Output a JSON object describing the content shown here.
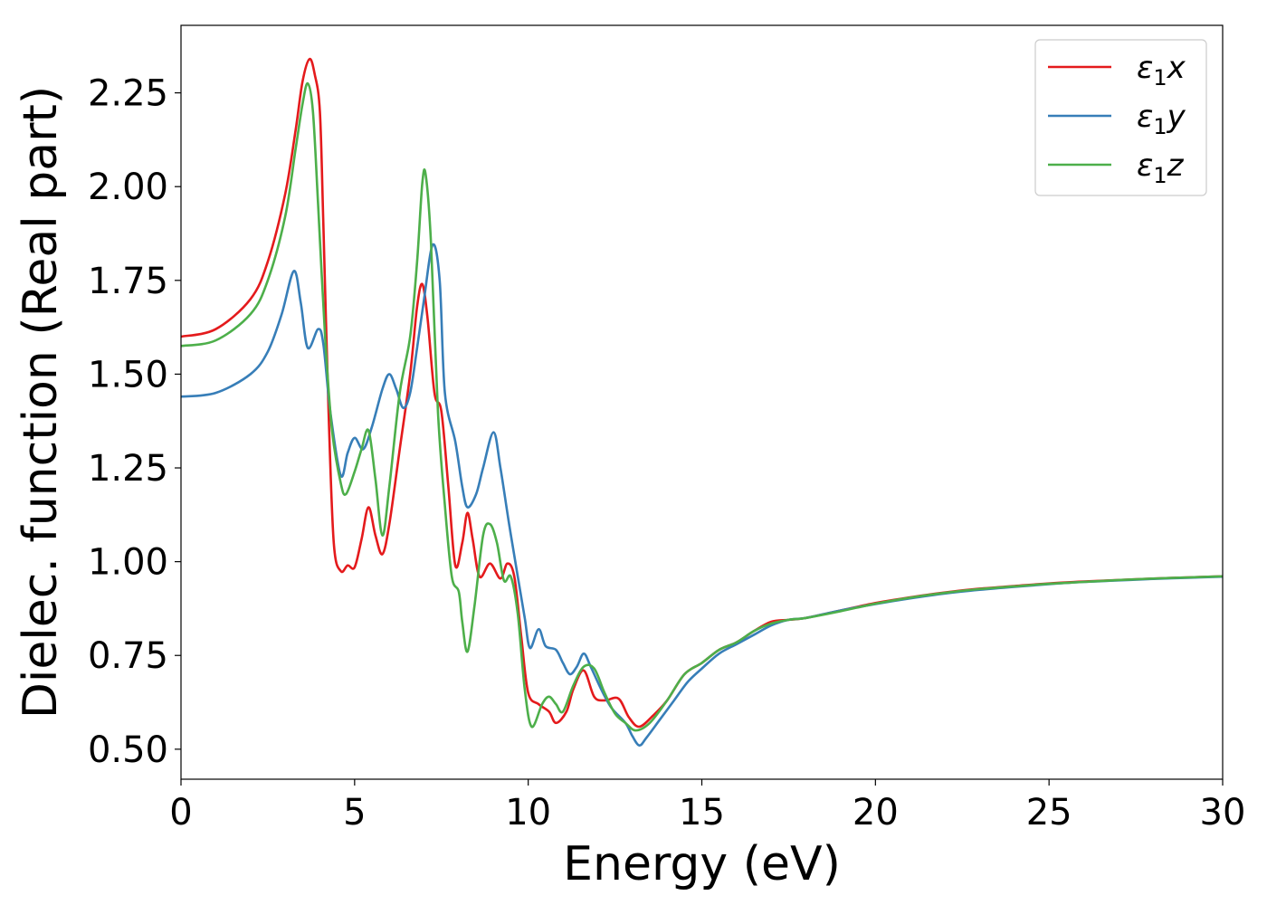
{
  "chart_data": {
    "type": "line",
    "title": "",
    "xlabel": "Energy (eV)",
    "ylabel": "Dielec. function (Real part)",
    "xlim": [
      0,
      30
    ],
    "ylim": [
      0.42,
      2.43
    ],
    "xticks": [
      0,
      5,
      10,
      15,
      20,
      25,
      30
    ],
    "xtick_labels": [
      "0",
      "5",
      "10",
      "15",
      "20",
      "25",
      "30"
    ],
    "yticks": [
      0.5,
      0.75,
      1.0,
      1.25,
      1.5,
      1.75,
      2.0,
      2.25
    ],
    "ytick_labels": [
      "0.50",
      "0.75",
      "1.00",
      "1.25",
      "1.50",
      "1.75",
      "2.00",
      "2.25"
    ],
    "grid": false,
    "legend_position": "top-right",
    "series": [
      {
        "label_main": "ε",
        "label_sub": "1",
        "label_tail": "x",
        "color": "#e41a1c",
        "points": [
          [
            0,
            1.6
          ],
          [
            1.0,
            1.62
          ],
          [
            2.0,
            1.7
          ],
          [
            2.5,
            1.8
          ],
          [
            3.0,
            1.98
          ],
          [
            3.3,
            2.15
          ],
          [
            3.5,
            2.28
          ],
          [
            3.7,
            2.34
          ],
          [
            3.85,
            2.3
          ],
          [
            4.0,
            2.2
          ],
          [
            4.1,
            1.9
          ],
          [
            4.25,
            1.4
          ],
          [
            4.4,
            1.05
          ],
          [
            4.6,
            0.975
          ],
          [
            4.8,
            0.99
          ],
          [
            5.0,
            0.985
          ],
          [
            5.2,
            1.06
          ],
          [
            5.4,
            1.145
          ],
          [
            5.6,
            1.07
          ],
          [
            5.8,
            1.02
          ],
          [
            6.0,
            1.1
          ],
          [
            6.3,
            1.3
          ],
          [
            6.6,
            1.5
          ],
          [
            6.8,
            1.68
          ],
          [
            6.95,
            1.74
          ],
          [
            7.1,
            1.65
          ],
          [
            7.3,
            1.45
          ],
          [
            7.5,
            1.4
          ],
          [
            7.7,
            1.2
          ],
          [
            7.9,
            0.99
          ],
          [
            8.1,
            1.05
          ],
          [
            8.25,
            1.13
          ],
          [
            8.4,
            1.06
          ],
          [
            8.6,
            0.96
          ],
          [
            8.9,
            0.995
          ],
          [
            9.2,
            0.955
          ],
          [
            9.4,
            0.995
          ],
          [
            9.6,
            0.96
          ],
          [
            9.8,
            0.8
          ],
          [
            10.0,
            0.65
          ],
          [
            10.3,
            0.62
          ],
          [
            10.6,
            0.6
          ],
          [
            10.8,
            0.57
          ],
          [
            11.1,
            0.6
          ],
          [
            11.3,
            0.66
          ],
          [
            11.6,
            0.71
          ],
          [
            11.9,
            0.64
          ],
          [
            12.2,
            0.63
          ],
          [
            12.6,
            0.635
          ],
          [
            12.9,
            0.585
          ],
          [
            13.2,
            0.56
          ],
          [
            13.6,
            0.59
          ],
          [
            14.0,
            0.63
          ],
          [
            14.5,
            0.7
          ],
          [
            15.0,
            0.73
          ],
          [
            15.5,
            0.765
          ],
          [
            16.0,
            0.785
          ],
          [
            16.5,
            0.815
          ],
          [
            17.0,
            0.84
          ],
          [
            17.5,
            0.845
          ],
          [
            18.0,
            0.85
          ],
          [
            19.0,
            0.87
          ],
          [
            20.0,
            0.89
          ],
          [
            21.0,
            0.905
          ],
          [
            22.0,
            0.918
          ],
          [
            23.0,
            0.928
          ],
          [
            24.0,
            0.935
          ],
          [
            25.0,
            0.942
          ],
          [
            26.0,
            0.947
          ],
          [
            27.0,
            0.951
          ],
          [
            28.0,
            0.955
          ],
          [
            29.0,
            0.958
          ],
          [
            30.0,
            0.961
          ]
        ]
      },
      {
        "label_main": "ε",
        "label_sub": "1",
        "label_tail": "y",
        "color": "#377eb8",
        "points": [
          [
            0,
            1.44
          ],
          [
            1.0,
            1.45
          ],
          [
            2.0,
            1.5
          ],
          [
            2.5,
            1.56
          ],
          [
            2.9,
            1.66
          ],
          [
            3.25,
            1.775
          ],
          [
            3.45,
            1.69
          ],
          [
            3.65,
            1.57
          ],
          [
            3.95,
            1.62
          ],
          [
            4.1,
            1.58
          ],
          [
            4.3,
            1.4
          ],
          [
            4.6,
            1.23
          ],
          [
            4.8,
            1.29
          ],
          [
            5.0,
            1.33
          ],
          [
            5.25,
            1.3
          ],
          [
            5.5,
            1.36
          ],
          [
            5.8,
            1.46
          ],
          [
            6.0,
            1.5
          ],
          [
            6.2,
            1.46
          ],
          [
            6.4,
            1.41
          ],
          [
            6.6,
            1.45
          ],
          [
            6.8,
            1.57
          ],
          [
            7.0,
            1.7
          ],
          [
            7.25,
            1.845
          ],
          [
            7.45,
            1.75
          ],
          [
            7.6,
            1.45
          ],
          [
            7.9,
            1.32
          ],
          [
            8.1,
            1.2
          ],
          [
            8.25,
            1.145
          ],
          [
            8.5,
            1.18
          ],
          [
            8.7,
            1.25
          ],
          [
            9.0,
            1.345
          ],
          [
            9.2,
            1.25
          ],
          [
            9.45,
            1.1
          ],
          [
            9.7,
            0.96
          ],
          [
            9.9,
            0.85
          ],
          [
            10.05,
            0.77
          ],
          [
            10.3,
            0.82
          ],
          [
            10.5,
            0.775
          ],
          [
            10.8,
            0.765
          ],
          [
            11.0,
            0.73
          ],
          [
            11.2,
            0.7
          ],
          [
            11.4,
            0.72
          ],
          [
            11.6,
            0.755
          ],
          [
            11.8,
            0.72
          ],
          [
            12.1,
            0.66
          ],
          [
            12.4,
            0.61
          ],
          [
            12.8,
            0.57
          ],
          [
            13.0,
            0.535
          ],
          [
            13.2,
            0.51
          ],
          [
            13.4,
            0.53
          ],
          [
            13.8,
            0.58
          ],
          [
            14.2,
            0.63
          ],
          [
            14.6,
            0.68
          ],
          [
            15.0,
            0.715
          ],
          [
            15.5,
            0.755
          ],
          [
            16.0,
            0.78
          ],
          [
            16.5,
            0.805
          ],
          [
            17.0,
            0.83
          ],
          [
            17.5,
            0.845
          ],
          [
            18.0,
            0.85
          ],
          [
            19.0,
            0.87
          ],
          [
            20.0,
            0.887
          ],
          [
            21.0,
            0.902
          ],
          [
            22.0,
            0.915
          ],
          [
            23.0,
            0.925
          ],
          [
            24.0,
            0.933
          ],
          [
            25.0,
            0.94
          ],
          [
            26.0,
            0.946
          ],
          [
            27.0,
            0.95
          ],
          [
            28.0,
            0.954
          ],
          [
            29.0,
            0.957
          ],
          [
            30.0,
            0.96
          ]
        ]
      },
      {
        "label_main": "ε",
        "label_sub": "1",
        "label_tail": "z",
        "color": "#4daf4a",
        "points": [
          [
            0,
            1.575
          ],
          [
            1.0,
            1.59
          ],
          [
            2.0,
            1.66
          ],
          [
            2.5,
            1.75
          ],
          [
            3.0,
            1.92
          ],
          [
            3.3,
            2.1
          ],
          [
            3.5,
            2.22
          ],
          [
            3.65,
            2.275
          ],
          [
            3.8,
            2.2
          ],
          [
            3.95,
            1.95
          ],
          [
            4.15,
            1.6
          ],
          [
            4.35,
            1.35
          ],
          [
            4.6,
            1.21
          ],
          [
            4.75,
            1.18
          ],
          [
            5.0,
            1.24
          ],
          [
            5.2,
            1.3
          ],
          [
            5.4,
            1.35
          ],
          [
            5.6,
            1.22
          ],
          [
            5.8,
            1.07
          ],
          [
            6.0,
            1.2
          ],
          [
            6.3,
            1.45
          ],
          [
            6.6,
            1.6
          ],
          [
            6.8,
            1.8
          ],
          [
            6.95,
            2.01
          ],
          [
            7.05,
            2.03
          ],
          [
            7.2,
            1.85
          ],
          [
            7.4,
            1.4
          ],
          [
            7.6,
            1.15
          ],
          [
            7.8,
            0.96
          ],
          [
            8.0,
            0.92
          ],
          [
            8.1,
            0.84
          ],
          [
            8.25,
            0.76
          ],
          [
            8.45,
            0.88
          ],
          [
            8.7,
            1.07
          ],
          [
            8.9,
            1.1
          ],
          [
            9.1,
            1.05
          ],
          [
            9.3,
            0.95
          ],
          [
            9.5,
            0.96
          ],
          [
            9.7,
            0.86
          ],
          [
            9.9,
            0.66
          ],
          [
            10.1,
            0.56
          ],
          [
            10.4,
            0.62
          ],
          [
            10.6,
            0.64
          ],
          [
            10.8,
            0.62
          ],
          [
            11.0,
            0.6
          ],
          [
            11.3,
            0.67
          ],
          [
            11.6,
            0.72
          ],
          [
            11.9,
            0.715
          ],
          [
            12.2,
            0.65
          ],
          [
            12.5,
            0.595
          ],
          [
            12.8,
            0.57
          ],
          [
            13.1,
            0.55
          ],
          [
            13.5,
            0.57
          ],
          [
            14.0,
            0.63
          ],
          [
            14.5,
            0.7
          ],
          [
            15.0,
            0.73
          ],
          [
            15.5,
            0.765
          ],
          [
            16.0,
            0.785
          ],
          [
            16.5,
            0.815
          ],
          [
            17.0,
            0.835
          ],
          [
            17.5,
            0.845
          ],
          [
            18.0,
            0.85
          ],
          [
            19.0,
            0.868
          ],
          [
            20.0,
            0.888
          ],
          [
            21.0,
            0.904
          ],
          [
            22.0,
            0.917
          ],
          [
            23.0,
            0.927
          ],
          [
            24.0,
            0.934
          ],
          [
            25.0,
            0.941
          ],
          [
            26.0,
            0.946
          ],
          [
            27.0,
            0.951
          ],
          [
            28.0,
            0.955
          ],
          [
            29.0,
            0.958
          ],
          [
            30.0,
            0.961
          ]
        ]
      }
    ]
  }
}
